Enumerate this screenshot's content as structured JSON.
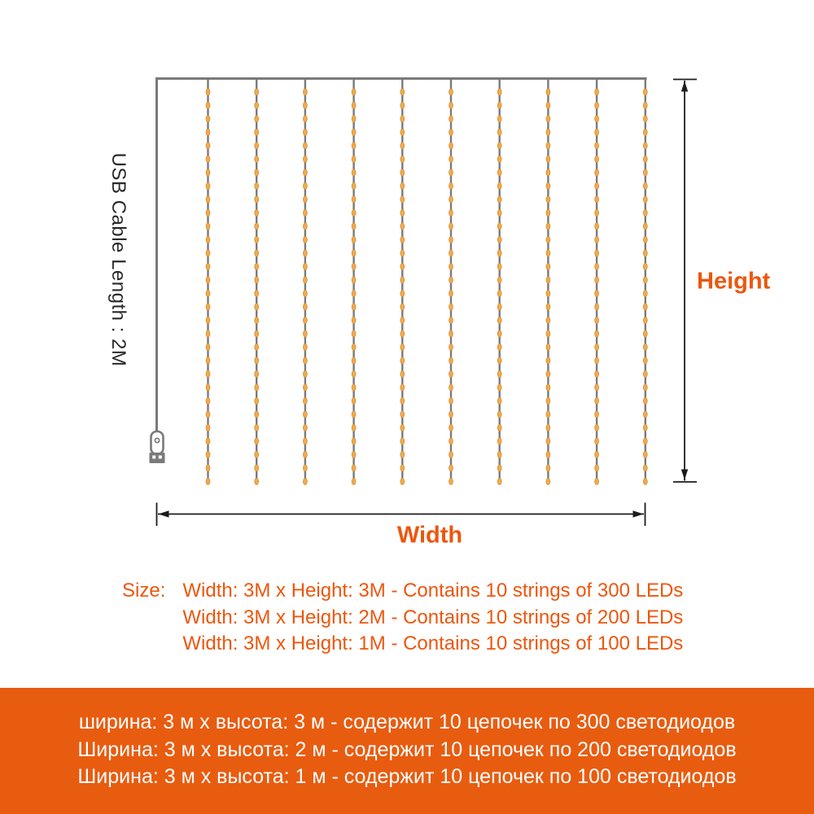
{
  "colors": {
    "background": "#ffffff",
    "accent": "#ed560d",
    "banner_bg": "#e85c10",
    "banner_text": "#ffffff",
    "wire": "#7a7a7a",
    "led_fill": "#f3ab4d",
    "led_stroke": "#d08c30",
    "arrow": "#1c1c1c",
    "usb_label_text": "#2a2a2a"
  },
  "diagram": {
    "usb_cable_label": "USB Cable Length : 2M",
    "height_label": "Height",
    "width_label": "Width",
    "strings_count": 10,
    "leds_per_string": 30
  },
  "size_info": {
    "label": "Size:",
    "lines": [
      "Width: 3M x Height: 3M - Contains 10 strings of 300 LEDs",
      "Width: 3M x Height: 2M - Contains 10 strings of 200 LEDs",
      "Width: 3M x Height: 1M - Contains 10 strings of 100 LEDs"
    ]
  },
  "banner": {
    "lines": [
      "ширина: 3 м х высота: 3 м - содержит 10 цепочек по 300 светодиодов",
      "Ширина: 3 м х высота: 2 м - содержит 10 цепочек по 200 светодиодов",
      "Ширина: 3 м х высота: 1 м - содержит 10 цепочек по 100 светодиодов"
    ]
  }
}
